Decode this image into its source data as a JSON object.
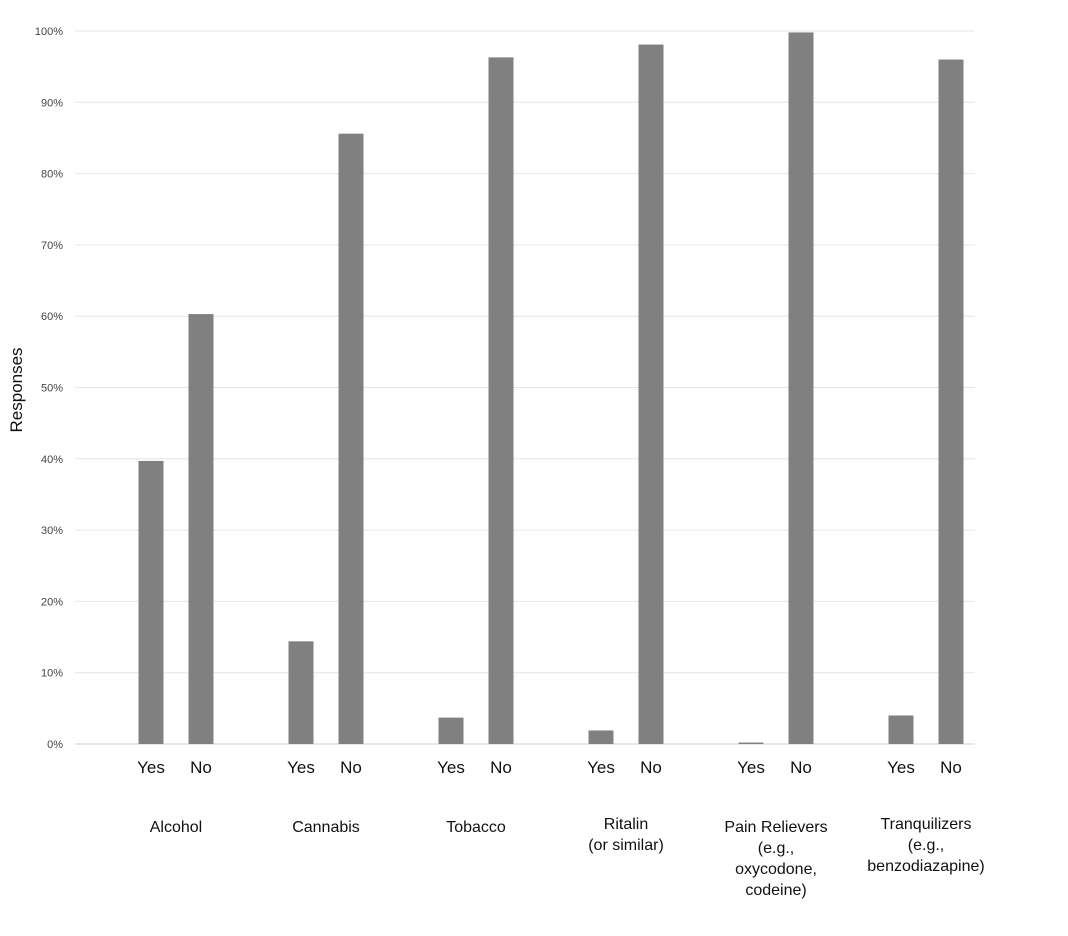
{
  "chart_data": {
    "type": "bar",
    "ylabel": "Responses",
    "ylim": [
      0,
      100
    ],
    "yticks": [
      "0%",
      "10%",
      "20%",
      "30%",
      "40%",
      "50%",
      "60%",
      "70%",
      "80%",
      "90%",
      "100%"
    ],
    "grid": true,
    "colors": {
      "bar": "#808080"
    },
    "sub_categories": [
      "Yes",
      "No"
    ],
    "groups": [
      {
        "label": [
          "Alcohol"
        ],
        "values": [
          39.7,
          60.3
        ]
      },
      {
        "label": [
          "Cannabis"
        ],
        "values": [
          14.4,
          85.6
        ]
      },
      {
        "label": [
          "Tobacco"
        ],
        "values": [
          3.7,
          96.3
        ]
      },
      {
        "label": [
          "Ritalin",
          "(or similar)"
        ],
        "values": [
          1.9,
          98.1
        ]
      },
      {
        "label": [
          "Pain Relievers",
          "(e.g.,",
          "oxycodone,",
          "codeine)"
        ],
        "values": [
          0.2,
          99.8
        ]
      },
      {
        "label": [
          "Tranquilizers",
          "(e.g.,",
          "benzodiazapine)"
        ],
        "values": [
          4.0,
          96.0
        ]
      }
    ]
  }
}
